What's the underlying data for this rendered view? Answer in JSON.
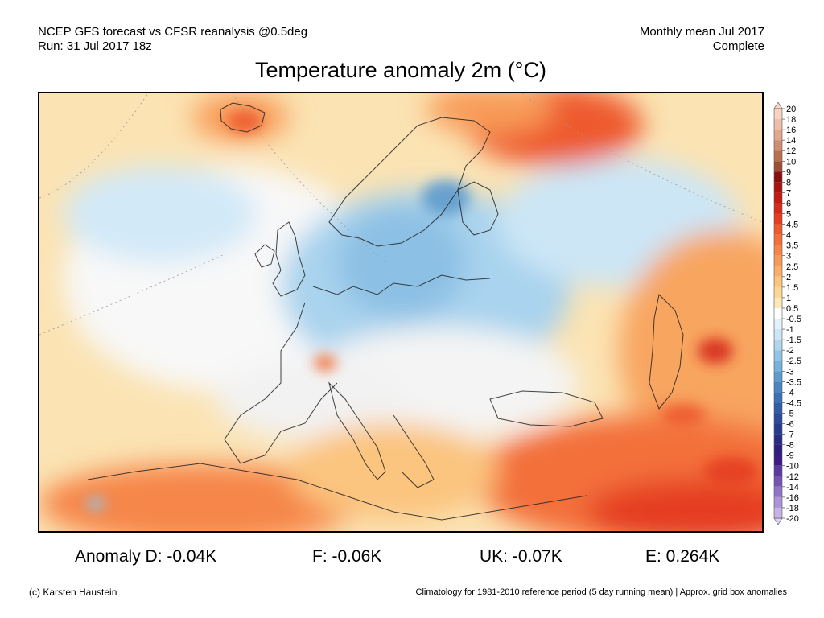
{
  "header": {
    "line1_left": "NCEP GFS forecast vs CFSR reanalysis @0.5deg",
    "line2_left": "Run: 31 Jul 2017 18z",
    "line1_right": "Monthly mean Jul 2017",
    "line2_right": "Complete"
  },
  "title": "Temperature anomaly 2m (°C)",
  "stats": {
    "d": "Anomaly D: -0.04K",
    "f": "F: -0.06K",
    "uk": "UK: -0.07K",
    "e": "E: 0.264K"
  },
  "footer": {
    "left": "(c) Karsten Haustein",
    "right": "Climatology for 1981-2010 reference period (5 day running mean) | Approx. grid box anomalies"
  },
  "colorbar": {
    "levels": [
      {
        "label": "20",
        "color": "#f7d3c1"
      },
      {
        "label": "18",
        "color": "#eebfa8"
      },
      {
        "label": "16",
        "color": "#e2a88e"
      },
      {
        "label": "14",
        "color": "#cf8d72"
      },
      {
        "label": "12",
        "color": "#b8704f"
      },
      {
        "label": "10",
        "color": "#9e4f33"
      },
      {
        "label": "9",
        "color": "#8a0f0f"
      },
      {
        "label": "8",
        "color": "#a8140f"
      },
      {
        "label": "7",
        "color": "#c41a14"
      },
      {
        "label": "6",
        "color": "#d62b1c"
      },
      {
        "label": "5",
        "color": "#e53c22"
      },
      {
        "label": "4.5",
        "color": "#ee5a2e"
      },
      {
        "label": "4",
        "color": "#f3703a"
      },
      {
        "label": "3.5",
        "color": "#f68648"
      },
      {
        "label": "3",
        "color": "#f89b58"
      },
      {
        "label": "2.5",
        "color": "#f9ae6a"
      },
      {
        "label": "2",
        "color": "#fbc47f"
      },
      {
        "label": "1.5",
        "color": "#fcd695"
      },
      {
        "label": "1",
        "color": "#fde8b6"
      },
      {
        "label": "0.5",
        "color": "#ffffff"
      },
      {
        "label": "-0.5",
        "color": "#e3f1fb"
      },
      {
        "label": "-1",
        "color": "#cce6f6"
      },
      {
        "label": "-1.5",
        "color": "#b0d6ee"
      },
      {
        "label": "-2",
        "color": "#93c4e5"
      },
      {
        "label": "-2.5",
        "color": "#78b1db"
      },
      {
        "label": "-3",
        "color": "#5e9bce"
      },
      {
        "label": "-3.5",
        "color": "#4a86c2"
      },
      {
        "label": "-4",
        "color": "#3a70b4"
      },
      {
        "label": "-4.5",
        "color": "#2f5da8"
      },
      {
        "label": "-5",
        "color": "#294c9c"
      },
      {
        "label": "-6",
        "color": "#273c8f"
      },
      {
        "label": "-7",
        "color": "#2a2c84"
      },
      {
        "label": "-8",
        "color": "#2e1f7a"
      },
      {
        "label": "-9",
        "color": "#3b1b85"
      },
      {
        "label": "-10",
        "color": "#5a3a9e"
      },
      {
        "label": "-12",
        "color": "#7654b3"
      },
      {
        "label": "-14",
        "color": "#9173c7"
      },
      {
        "label": "-16",
        "color": "#ac93d8"
      },
      {
        "label": "-18",
        "color": "#c7b3e7"
      },
      {
        "label": "-20",
        "color": "#dccff2"
      }
    ]
  }
}
